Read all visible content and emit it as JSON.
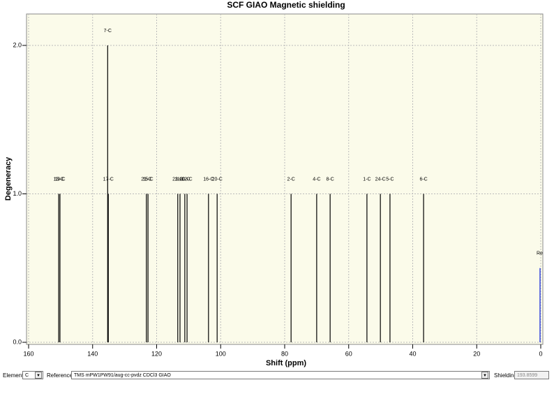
{
  "chart_data": {
    "type": "stick",
    "title": "SCF GIAO Magnetic shielding",
    "x_label": "Shift (ppm)",
    "y_label": "Degeneracy",
    "xlim": [
      160,
      0
    ],
    "ylim": [
      0,
      2.2
    ],
    "xticks": [
      160,
      140,
      120,
      100,
      80,
      60,
      40,
      20,
      0
    ],
    "yticks": [
      {
        "value": 0,
        "label": "0.0"
      },
      {
        "value": 1,
        "label": "1.0"
      },
      {
        "value": 2,
        "label": "2.0"
      }
    ],
    "grid": true,
    "color": "#000000",
    "series": [
      {
        "name": "Peaks",
        "labels": [
          "13-C",
          "19-C",
          "17-C",
          "7-C",
          "21-C",
          "15-C",
          "23-C",
          "11-C",
          "10-C",
          "12-C",
          "16-C",
          "20-C",
          "2-C",
          "4-C",
          "8-C",
          "1-C",
          "24-C",
          "5-C",
          "6-C"
        ],
        "x": [
          150.6,
          150.2,
          135.1,
          135.3,
          123.2,
          122.7,
          113.4,
          112.7,
          111.2,
          110.5,
          103.8,
          101.1,
          78.0,
          70.0,
          65.8,
          54.3,
          50.1,
          47.1,
          36.6
        ],
        "values": [
          1,
          1,
          1,
          2,
          1,
          1,
          1,
          1,
          1,
          1,
          1,
          1,
          1,
          1,
          1,
          1,
          1,
          1,
          1
        ]
      }
    ],
    "reference": {
      "label": "Re",
      "x": 0,
      "value": 0.5,
      "color": "#3344dd"
    }
  },
  "controls": {
    "element_label": "Element:",
    "element": "C",
    "reference_label": "Reference:",
    "reference": "TMS mPW1PW91/aug-cc-pvdz CDCl3 GIAO",
    "shielding_label": "Shielding:",
    "shielding": "193.8599"
  }
}
